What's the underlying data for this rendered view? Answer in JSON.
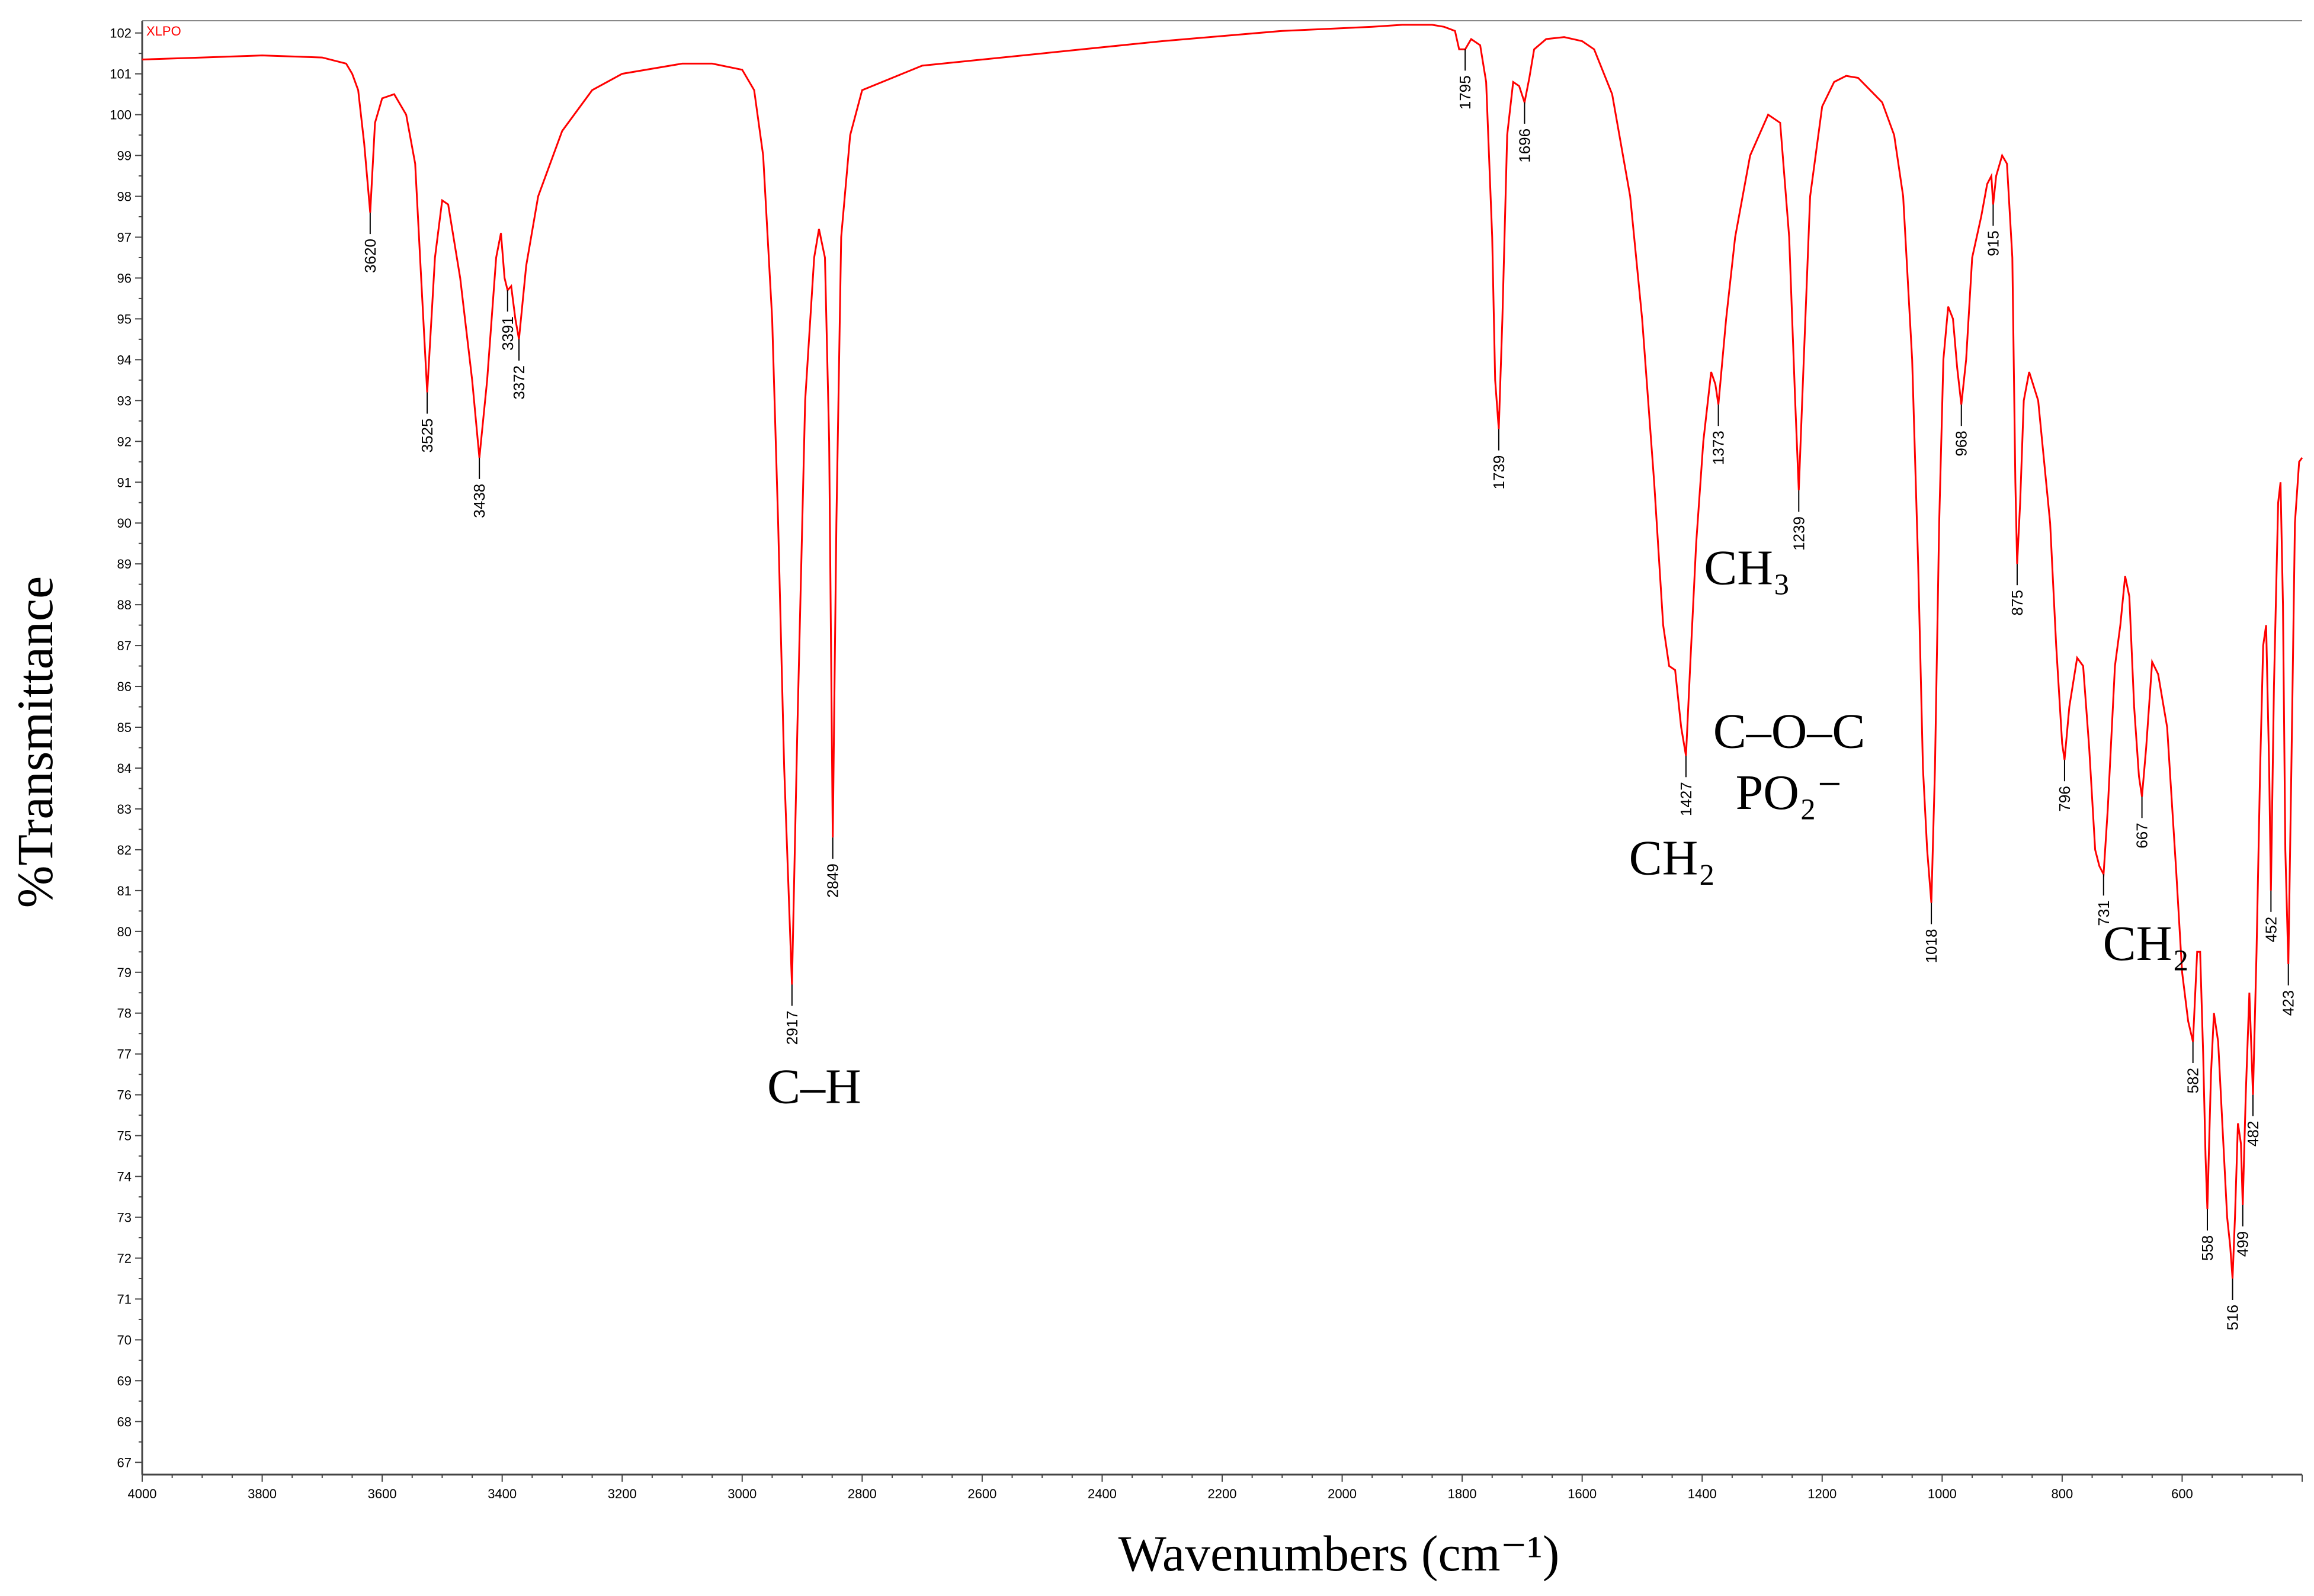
{
  "chart_data": {
    "type": "line",
    "series": [
      {
        "name": "XLPO",
        "color": "#ff0000"
      }
    ],
    "xlabel": "Wavenumbers (cm⁻¹)",
    "ylabel": "%Transmittance",
    "xlim": [
      4000,
      400
    ],
    "ylim": [
      66.7,
      102.3
    ],
    "x_ticks": [
      4000,
      3800,
      3600,
      3400,
      3200,
      3000,
      2800,
      2600,
      2400,
      2200,
      2000,
      1800,
      1600,
      1400,
      1200,
      1000,
      800,
      600
    ],
    "y_ticks": [
      67,
      68,
      69,
      70,
      71,
      72,
      73,
      74,
      75,
      76,
      77,
      78,
      79,
      80,
      81,
      82,
      83,
      84,
      85,
      86,
      87,
      88,
      89,
      90,
      91,
      92,
      93,
      94,
      95,
      96,
      97,
      98,
      99,
      100,
      101,
      102
    ],
    "grid": false,
    "legend": "top-left",
    "points": [
      [
        4000,
        101.35
      ],
      [
        3900,
        101.4
      ],
      [
        3800,
        101.45
      ],
      [
        3700,
        101.4
      ],
      [
        3660,
        101.25
      ],
      [
        3650,
        101.0
      ],
      [
        3640,
        100.6
      ],
      [
        3630,
        99.3
      ],
      [
        3620,
        97.6
      ],
      [
        3612,
        99.8
      ],
      [
        3600,
        100.4
      ],
      [
        3580,
        100.5
      ],
      [
        3560,
        100.0
      ],
      [
        3545,
        98.8
      ],
      [
        3535,
        96.0
      ],
      [
        3525,
        93.2
      ],
      [
        3512,
        96.5
      ],
      [
        3500,
        97.9
      ],
      [
        3490,
        97.8
      ],
      [
        3470,
        96.0
      ],
      [
        3450,
        93.5
      ],
      [
        3438,
        91.6
      ],
      [
        3425,
        93.5
      ],
      [
        3410,
        96.5
      ],
      [
        3402,
        97.1
      ],
      [
        3396,
        96.0
      ],
      [
        3391,
        95.7
      ],
      [
        3385,
        95.8
      ],
      [
        3378,
        95.0
      ],
      [
        3372,
        94.5
      ],
      [
        3360,
        96.3
      ],
      [
        3340,
        98.0
      ],
      [
        3300,
        99.6
      ],
      [
        3250,
        100.6
      ],
      [
        3200,
        101.0
      ],
      [
        3100,
        101.25
      ],
      [
        3050,
        101.25
      ],
      [
        3000,
        101.1
      ],
      [
        2980,
        100.6
      ],
      [
        2965,
        99.0
      ],
      [
        2950,
        95.0
      ],
      [
        2940,
        90.0
      ],
      [
        2930,
        84.0
      ],
      [
        2917,
        78.7
      ],
      [
        2908,
        85.0
      ],
      [
        2895,
        93.0
      ],
      [
        2880,
        96.5
      ],
      [
        2872,
        97.2
      ],
      [
        2862,
        96.5
      ],
      [
        2855,
        92.0
      ],
      [
        2849,
        82.3
      ],
      [
        2843,
        90.0
      ],
      [
        2835,
        97.0
      ],
      [
        2820,
        99.5
      ],
      [
        2800,
        100.6
      ],
      [
        2700,
        101.2
      ],
      [
        2500,
        101.5
      ],
      [
        2300,
        101.8
      ],
      [
        2100,
        102.05
      ],
      [
        1950,
        102.15
      ],
      [
        1900,
        102.2
      ],
      [
        1850,
        102.2
      ],
      [
        1830,
        102.15
      ],
      [
        1812,
        102.05
      ],
      [
        1805,
        101.6
      ],
      [
        1795,
        101.6
      ],
      [
        1785,
        101.85
      ],
      [
        1770,
        101.7
      ],
      [
        1760,
        100.8
      ],
      [
        1750,
        97.0
      ],
      [
        1745,
        93.5
      ],
      [
        1739,
        92.3
      ],
      [
        1733,
        95.0
      ],
      [
        1725,
        99.5
      ],
      [
        1715,
        100.8
      ],
      [
        1705,
        100.7
      ],
      [
        1696,
        100.3
      ],
      [
        1688,
        100.9
      ],
      [
        1680,
        101.6
      ],
      [
        1660,
        101.85
      ],
      [
        1630,
        101.9
      ],
      [
        1600,
        101.8
      ],
      [
        1580,
        101.6
      ],
      [
        1550,
        100.5
      ],
      [
        1520,
        98.0
      ],
      [
        1500,
        95.0
      ],
      [
        1480,
        91.0
      ],
      [
        1465,
        87.5
      ],
      [
        1455,
        86.5
      ],
      [
        1445,
        86.4
      ],
      [
        1435,
        85.0
      ],
      [
        1427,
        84.3
      ],
      [
        1420,
        86.5
      ],
      [
        1410,
        89.5
      ],
      [
        1398,
        92.0
      ],
      [
        1385,
        93.7
      ],
      [
        1378,
        93.4
      ],
      [
        1373,
        92.9
      ],
      [
        1360,
        95.0
      ],
      [
        1345,
        97.0
      ],
      [
        1320,
        99.0
      ],
      [
        1290,
        100.0
      ],
      [
        1270,
        99.8
      ],
      [
        1255,
        97.0
      ],
      [
        1245,
        93.0
      ],
      [
        1239,
        90.8
      ],
      [
        1232,
        93.5
      ],
      [
        1220,
        98.0
      ],
      [
        1200,
        100.2
      ],
      [
        1180,
        100.8
      ],
      [
        1160,
        100.95
      ],
      [
        1140,
        100.9
      ],
      [
        1120,
        100.6
      ],
      [
        1100,
        100.3
      ],
      [
        1080,
        99.5
      ],
      [
        1065,
        98.0
      ],
      [
        1050,
        94.0
      ],
      [
        1040,
        89.0
      ],
      [
        1032,
        84.0
      ],
      [
        1025,
        82.0
      ],
      [
        1018,
        80.7
      ],
      [
        1012,
        84.0
      ],
      [
        1005,
        90.0
      ],
      [
        998,
        94.0
      ],
      [
        990,
        95.3
      ],
      [
        982,
        95.0
      ],
      [
        975,
        93.8
      ],
      [
        968,
        92.9
      ],
      [
        960,
        94.0
      ],
      [
        950,
        96.5
      ],
      [
        935,
        97.5
      ],
      [
        925,
        98.3
      ],
      [
        918,
        98.5
      ],
      [
        915,
        97.8
      ],
      [
        910,
        98.5
      ],
      [
        900,
        99.0
      ],
      [
        892,
        98.8
      ],
      [
        883,
        96.5
      ],
      [
        878,
        91.0
      ],
      [
        875,
        89.0
      ],
      [
        870,
        90.5
      ],
      [
        864,
        93.0
      ],
      [
        855,
        93.7
      ],
      [
        840,
        93.0
      ],
      [
        830,
        91.5
      ],
      [
        820,
        90.0
      ],
      [
        810,
        87.0
      ],
      [
        800,
        84.6
      ],
      [
        796,
        84.2
      ],
      [
        788,
        85.5
      ],
      [
        775,
        86.7
      ],
      [
        765,
        86.5
      ],
      [
        755,
        84.5
      ],
      [
        745,
        82.0
      ],
      [
        738,
        81.6
      ],
      [
        731,
        81.4
      ],
      [
        724,
        83.0
      ],
      [
        712,
        86.5
      ],
      [
        703,
        87.5
      ],
      [
        695,
        88.7
      ],
      [
        688,
        88.2
      ],
      [
        680,
        85.5
      ],
      [
        672,
        83.8
      ],
      [
        667,
        83.3
      ],
      [
        660,
        84.5
      ],
      [
        650,
        86.6
      ],
      [
        640,
        86.3
      ],
      [
        625,
        85.0
      ],
      [
        610,
        81.5
      ],
      [
        600,
        79.0
      ],
      [
        590,
        77.8
      ],
      [
        582,
        77.3
      ],
      [
        575,
        79.5
      ],
      [
        570,
        79.5
      ],
      [
        565,
        77.0
      ],
      [
        561,
        74.5
      ],
      [
        558,
        73.2
      ],
      [
        552,
        76.5
      ],
      [
        547,
        78.0
      ],
      [
        540,
        77.3
      ],
      [
        532,
        75.0
      ],
      [
        525,
        73.0
      ],
      [
        520,
        72.3
      ],
      [
        516,
        71.5
      ],
      [
        512,
        73.0
      ],
      [
        507,
        75.3
      ],
      [
        502,
        74.8
      ],
      [
        499,
        73.3
      ],
      [
        494,
        76.0
      ],
      [
        488,
        78.5
      ],
      [
        482,
        76.0
      ],
      [
        476,
        79.5
      ],
      [
        470,
        84.0
      ],
      [
        465,
        87.0
      ],
      [
        460,
        87.5
      ],
      [
        455,
        84.0
      ],
      [
        452,
        81.0
      ],
      [
        447,
        86.0
      ],
      [
        440,
        90.5
      ],
      [
        436,
        91.0
      ],
      [
        432,
        88.0
      ],
      [
        428,
        82.0
      ],
      [
        423,
        79.2
      ],
      [
        418,
        84.0
      ],
      [
        412,
        90.0
      ],
      [
        405,
        91.5
      ],
      [
        400,
        91.6
      ]
    ],
    "peaks": [
      {
        "wn": 3620,
        "label": "3620",
        "y": 97.6
      },
      {
        "wn": 3525,
        "label": "3525",
        "y": 93.2
      },
      {
        "wn": 3438,
        "label": "3438",
        "y": 91.6
      },
      {
        "wn": 3391,
        "label": "3391",
        "y": 95.7
      },
      {
        "wn": 3372,
        "label": "3372",
        "y": 94.5
      },
      {
        "wn": 2917,
        "label": "2917",
        "y": 78.7
      },
      {
        "wn": 2849,
        "label": "2849",
        "y": 82.3
      },
      {
        "wn": 1795,
        "label": "1795",
        "y": 101.6
      },
      {
        "wn": 1739,
        "label": "1739",
        "y": 92.3
      },
      {
        "wn": 1696,
        "label": "1696",
        "y": 100.3
      },
      {
        "wn": 1427,
        "label": "1427",
        "y": 84.3
      },
      {
        "wn": 1373,
        "label": "1373",
        "y": 92.9
      },
      {
        "wn": 1239,
        "label": "1239",
        "y": 90.8
      },
      {
        "wn": 1018,
        "label": "1018",
        "y": 80.7
      },
      {
        "wn": 968,
        "label": "968",
        "y": 92.9
      },
      {
        "wn": 915,
        "label": "915",
        "y": 97.8
      },
      {
        "wn": 875,
        "label": "875",
        "y": 89.0
      },
      {
        "wn": 796,
        "label": "796",
        "y": 84.2
      },
      {
        "wn": 731,
        "label": "731",
        "y": 81.4
      },
      {
        "wn": 667,
        "label": "667",
        "y": 83.3
      },
      {
        "wn": 582,
        "label": "582",
        "y": 77.3
      },
      {
        "wn": 558,
        "label": "558",
        "y": 73.2
      },
      {
        "wn": 516,
        "label": "516",
        "y": 71.5
      },
      {
        "wn": 499,
        "label": "499",
        "y": 73.3
      },
      {
        "wn": 482,
        "label": "482",
        "y": 76.0
      },
      {
        "wn": 452,
        "label": "452",
        "y": 81.0
      },
      {
        "wn": 423,
        "label": "423",
        "y": 79.2
      }
    ],
    "annotations": [
      {
        "text": "C–H",
        "wn": 2880,
        "y": 75.8
      },
      {
        "text": "CH₃",
        "wn": 1325,
        "y": 88.5
      },
      {
        "text": "C–O–C",
        "wn": 1255,
        "y": 84.5
      },
      {
        "text": "PO₂⁻",
        "wn": 1255,
        "y": 83.0
      },
      {
        "text": "CH₂",
        "wn": 1450,
        "y": 81.4
      },
      {
        "text": "CH₂",
        "wn": 660,
        "y": 79.3
      }
    ]
  }
}
